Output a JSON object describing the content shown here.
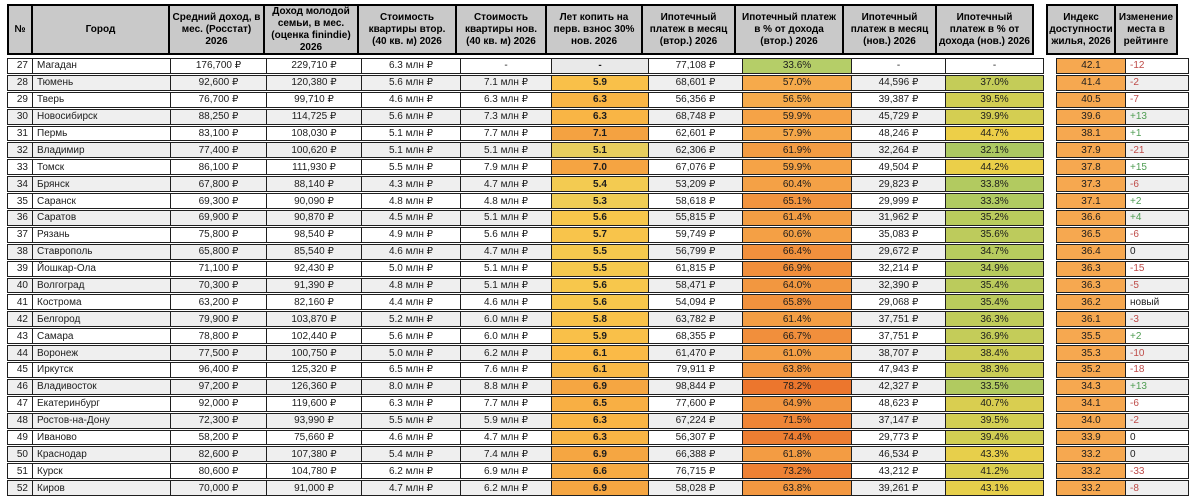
{
  "table": {
    "headers": {
      "num": "№",
      "city": "Город",
      "income": "Средний доход, в мес. (Росстат) 2026",
      "family_income": "Доход молодой семьи, в мес. (оценка finindie) 2026",
      "price_old": "Стоимость квартиры втор. (40 кв. м) 2026",
      "price_new": "Стоимость квартиры нов. (40 кв. м) 2026",
      "years_save": "Лет копить на перв. взнос 30% нов. 2026",
      "pay_old": "Ипотечный платеж в месяц (втор.) 2026",
      "pct_old": "Ипотечный платеж в % от дохода (втор.) 2026",
      "pay_new": "Ипотечный платеж в месяц (нов.) 2026",
      "pct_new": "Ипотечный платеж в % от дохода (нов.) 2026",
      "index": "Индекс доступности жилья, 2026",
      "change": "Изменение места в рейтинге"
    },
    "rows": [
      {
        "n": "27",
        "city": "Магадан",
        "income": "176,700 ₽",
        "family": "229,710 ₽",
        "price_old": "6.3 млн ₽",
        "price_new": "-",
        "years": "-",
        "years_bg": "#E9E9E9",
        "pay_old": "77,108 ₽",
        "pct_old": "33.6%",
        "pct_old_bg": "#B5CE68",
        "pay_new": "-",
        "pct_new": "-",
        "pct_new_bg": "",
        "index": "42.1",
        "change": "-12"
      },
      {
        "n": "28",
        "city": "Тюмень",
        "income": "92,600 ₽",
        "family": "120,380 ₽",
        "price_old": "5.6 млн ₽",
        "price_new": "7.1 млн ₽",
        "years": "5.9",
        "years_bg": "#F9C049",
        "pay_old": "68,601 ₽",
        "pct_old": "57.0%",
        "pct_old_bg": "#F6AA4B",
        "pay_new": "44,596 ₽",
        "pct_new": "37.0%",
        "pct_new_bg": "#C4CC58",
        "index": "41.4",
        "change": "-2"
      },
      {
        "n": "29",
        "city": "Тверь",
        "income": "76,700 ₽",
        "family": "99,710 ₽",
        "price_old": "4.6 млн ₽",
        "price_new": "6.3 млн ₽",
        "years": "6.3",
        "years_bg": "#F9B545",
        "pay_old": "56,356 ₽",
        "pct_old": "56.5%",
        "pct_old_bg": "#F6AB4C",
        "pay_new": "39,387 ₽",
        "pct_new": "39.5%",
        "pct_new_bg": "#D2CE53",
        "index": "40.5",
        "change": "-7"
      },
      {
        "n": "30",
        "city": "Новосибирск",
        "income": "88,250 ₽",
        "family": "114,725 ₽",
        "price_old": "5.6 млн ₽",
        "price_new": "7.3 млн ₽",
        "years": "6.3",
        "years_bg": "#F9B545",
        "pay_old": "68,748 ₽",
        "pct_old": "59.9%",
        "pct_old_bg": "#F5A347",
        "pay_new": "45,729 ₽",
        "pct_new": "39.9%",
        "pct_new_bg": "#D4CE52",
        "index": "39.6",
        "change": "+13"
      },
      {
        "n": "31",
        "city": "Пермь",
        "income": "83,100 ₽",
        "family": "108,030 ₽",
        "price_old": "5.1 млн ₽",
        "price_new": "7.7 млн ₽",
        "years": "7.1",
        "years_bg": "#F4A241",
        "pay_old": "62,601 ₽",
        "pct_old": "57.9%",
        "pct_old_bg": "#F5A749",
        "pay_new": "48,246 ₽",
        "pct_new": "44.7%",
        "pct_new_bg": "#EDCF48",
        "index": "38.1",
        "change": "+1"
      },
      {
        "n": "32",
        "city": "Владимир",
        "income": "77,400 ₽",
        "family": "100,620 ₽",
        "price_old": "5.1 млн ₽",
        "price_new": "5.1 млн ₽",
        "years": "5.1",
        "years_bg": "#E7CE5E",
        "pay_old": "62,306 ₽",
        "pct_old": "61.9%",
        "pct_old_bg": "#F39C43",
        "pay_new": "32,264 ₽",
        "pct_new": "32.1%",
        "pct_new_bg": "#ACC962",
        "index": "37.9",
        "change": "-21"
      },
      {
        "n": "33",
        "city": "Томск",
        "income": "86,100 ₽",
        "family": "111,930 ₽",
        "price_old": "5.5 млн ₽",
        "price_new": "7.9 млн ₽",
        "years": "7.0",
        "years_bg": "#F5A442",
        "pay_old": "67,076 ₽",
        "pct_old": "59.9%",
        "pct_old_bg": "#F5A347",
        "pay_new": "49,504 ₽",
        "pct_new": "44.2%",
        "pct_new_bg": "#EBCF49",
        "index": "37.8",
        "change": "+15"
      },
      {
        "n": "34",
        "city": "Брянск",
        "income": "67,800 ₽",
        "family": "88,140 ₽",
        "price_old": "4.3 млн ₽",
        "price_new": "4.7 млн ₽",
        "years": "5.4",
        "years_bg": "#F3CB51",
        "pay_old": "53,209 ₽",
        "pct_old": "60.4%",
        "pct_old_bg": "#F4A146",
        "pay_new": "29,823 ₽",
        "pct_new": "33.8%",
        "pct_new_bg": "#B2CA60",
        "index": "37.3",
        "change": "-6"
      },
      {
        "n": "35",
        "city": "Саранск",
        "income": "69,300 ₽",
        "family": "90,090 ₽",
        "price_old": "4.8 млн ₽",
        "price_new": "4.8 млн ₽",
        "years": "5.3",
        "years_bg": "#F0CD55",
        "pay_old": "58,618 ₽",
        "pct_old": "65.1%",
        "pct_old_bg": "#F2943F",
        "pay_new": "29,999 ₽",
        "pct_new": "33.3%",
        "pct_new_bg": "#B0CA61",
        "index": "37.1",
        "change": "+2"
      },
      {
        "n": "36",
        "city": "Саратов",
        "income": "69,900 ₽",
        "family": "90,870 ₽",
        "price_old": "4.5 млн ₽",
        "price_new": "5.1 млн ₽",
        "years": "5.6",
        "years_bg": "#F7C74C",
        "pay_old": "55,815 ₽",
        "pct_old": "61.4%",
        "pct_old_bg": "#F39E44",
        "pay_new": "31,962 ₽",
        "pct_new": "35.2%",
        "pct_new_bg": "#BACB5D",
        "index": "36.6",
        "change": "+4"
      },
      {
        "n": "37",
        "city": "Рязань",
        "income": "75,800 ₽",
        "family": "98,540 ₽",
        "price_old": "4.9 млн ₽",
        "price_new": "5.6 млн ₽",
        "years": "5.7",
        "years_bg": "#F8C44B",
        "pay_old": "59,749 ₽",
        "pct_old": "60.6%",
        "pct_old_bg": "#F4A045",
        "pay_new": "35,083 ₽",
        "pct_new": "35.6%",
        "pct_new_bg": "#BDCB5C",
        "index": "36.5",
        "change": "-6"
      },
      {
        "n": "38",
        "city": "Ставрополь",
        "income": "65,800 ₽",
        "family": "85,540 ₽",
        "price_old": "4.6 млн ₽",
        "price_new": "4.7 млн ₽",
        "years": "5.5",
        "years_bg": "#F5C94E",
        "pay_old": "56,799 ₽",
        "pct_old": "66.4%",
        "pct_old_bg": "#F1903D",
        "pay_new": "29,672 ₽",
        "pct_new": "34.7%",
        "pct_new_bg": "#B7CB5E",
        "index": "36.4",
        "change": "0"
      },
      {
        "n": "39",
        "city": "Йошкар-Ола",
        "income": "71,100 ₽",
        "family": "92,430 ₽",
        "price_old": "5.0 млн ₽",
        "price_new": "5.1 млн ₽",
        "years": "5.5",
        "years_bg": "#F5C94E",
        "pay_old": "61,815 ₽",
        "pct_old": "66.9%",
        "pct_old_bg": "#F18F3C",
        "pay_new": "32,214 ₽",
        "pct_new": "34.9%",
        "pct_new_bg": "#B8CB5E",
        "index": "36.3",
        "change": "-15"
      },
      {
        "n": "40",
        "city": "Волгоград",
        "income": "70,300 ₽",
        "family": "91,390 ₽",
        "price_old": "4.8 млн ₽",
        "price_new": "5.1 млн ₽",
        "years": "5.6",
        "years_bg": "#F7C74C",
        "pay_old": "58,471 ₽",
        "pct_old": "64.0%",
        "pct_old_bg": "#F29740",
        "pay_new": "32,390 ₽",
        "pct_new": "35.4%",
        "pct_new_bg": "#BBCB5C",
        "index": "36.3",
        "change": "-5"
      },
      {
        "n": "41",
        "city": "Кострома",
        "income": "63,200 ₽",
        "family": "82,160 ₽",
        "price_old": "4.4 млн ₽",
        "price_new": "4.6 млн ₽",
        "years": "5.6",
        "years_bg": "#F7C74C",
        "pay_old": "54,094 ₽",
        "pct_old": "65.8%",
        "pct_old_bg": "#F1923E",
        "pay_new": "29,068 ₽",
        "pct_new": "35.4%",
        "pct_new_bg": "#BBCB5C",
        "index": "36.2",
        "change": "новый"
      },
      {
        "n": "42",
        "city": "Белгород",
        "income": "79,900 ₽",
        "family": "103,870 ₽",
        "price_old": "5.2 млн ₽",
        "price_new": "6.0 млн ₽",
        "years": "5.8",
        "years_bg": "#F9C24A",
        "pay_old": "63,782 ₽",
        "pct_old": "61.4%",
        "pct_old_bg": "#F39E44",
        "pay_new": "37,751 ₽",
        "pct_new": "36.3%",
        "pct_new_bg": "#C0CC5A",
        "index": "36.1",
        "change": "-3"
      },
      {
        "n": "43",
        "city": "Самара",
        "income": "78,800 ₽",
        "family": "102,440 ₽",
        "price_old": "5.6 млн ₽",
        "price_new": "6.0 млн ₽",
        "years": "5.9",
        "years_bg": "#F9C049",
        "pay_old": "68,355 ₽",
        "pct_old": "66.7%",
        "pct_old_bg": "#F18F3C",
        "pay_new": "37,751 ₽",
        "pct_new": "36.9%",
        "pct_new_bg": "#C4CC59",
        "index": "35.5",
        "change": "+2"
      },
      {
        "n": "44",
        "city": "Воронеж",
        "income": "77,500 ₽",
        "family": "100,750 ₽",
        "price_old": "5.0 млн ₽",
        "price_new": "6.2 млн ₽",
        "years": "6.1",
        "years_bg": "#FABA47",
        "pay_old": "61,470 ₽",
        "pct_old": "61.0%",
        "pct_old_bg": "#F49F45",
        "pay_new": "38,707 ₽",
        "pct_new": "38.4%",
        "pct_new_bg": "#CCCD55",
        "index": "35.3",
        "change": "-10"
      },
      {
        "n": "45",
        "city": "Иркутск",
        "income": "96,400 ₽",
        "family": "125,320 ₽",
        "price_old": "6.5 млн ₽",
        "price_new": "7.6 млн ₽",
        "years": "6.1",
        "years_bg": "#FABA47",
        "pay_old": "79,911 ₽",
        "pct_old": "63.8%",
        "pct_old_bg": "#F39841",
        "pay_new": "47,943 ₽",
        "pct_new": "38.3%",
        "pct_new_bg": "#CBCD56",
        "index": "35.2",
        "change": "-18"
      },
      {
        "n": "46",
        "city": "Владивосток",
        "income": "97,200 ₽",
        "family": "126,360 ₽",
        "price_old": "8.0 млн ₽",
        "price_new": "8.8 млн ₽",
        "years": "6.9",
        "years_bg": "#F5A642",
        "pay_old": "98,844 ₽",
        "pct_old": "78.2%",
        "pct_old_bg": "#EC762D",
        "pay_new": "42,327 ₽",
        "pct_new": "33.5%",
        "pct_new_bg": "#B1CA60",
        "index": "34.3",
        "change": "+13"
      },
      {
        "n": "47",
        "city": "Екатеринбург",
        "income": "92,000 ₽",
        "family": "119,600 ₽",
        "price_old": "6.3 млн ₽",
        "price_new": "7.7 млн ₽",
        "years": "6.5",
        "years_bg": "#F8AF44",
        "pay_old": "77,600 ₽",
        "pct_old": "64.9%",
        "pct_old_bg": "#F2953F",
        "pay_new": "48,623 ₽",
        "pct_new": "40.7%",
        "pct_new_bg": "#D9CE50",
        "index": "34.1",
        "change": "-6"
      },
      {
        "n": "48",
        "city": "Ростов-на-Дону",
        "income": "72,300 ₽",
        "family": "93,990 ₽",
        "price_old": "5.5 млн ₽",
        "price_new": "5.9 млн ₽",
        "years": "6.3",
        "years_bg": "#F9B545",
        "pay_old": "67,224 ₽",
        "pct_old": "71.5%",
        "pct_old_bg": "#EF8536",
        "pay_new": "37,147 ₽",
        "pct_new": "39.5%",
        "pct_new_bg": "#D2CE53",
        "index": "34.0",
        "change": "-2"
      },
      {
        "n": "49",
        "city": "Иваново",
        "income": "58,200 ₽",
        "family": "75,660 ₽",
        "price_old": "4.6 млн ₽",
        "price_new": "4.7 млн ₽",
        "years": "6.3",
        "years_bg": "#F9B545",
        "pay_old": "56,307 ₽",
        "pct_old": "74.4%",
        "pct_old_bg": "#ED7E32",
        "pay_new": "29,773 ₽",
        "pct_new": "39.4%",
        "pct_new_bg": "#D1CE53",
        "index": "33.9",
        "change": "0"
      },
      {
        "n": "50",
        "city": "Краснодар",
        "income": "82,600 ₽",
        "family": "107,380 ₽",
        "price_old": "5.4 млн ₽",
        "price_new": "7.4 млн ₽",
        "years": "6.9",
        "years_bg": "#F5A642",
        "pay_old": "66,388 ₽",
        "pct_old": "61.8%",
        "pct_old_bg": "#F39C43",
        "pay_new": "46,534 ₽",
        "pct_new": "43.3%",
        "pct_new_bg": "#E7CF4B",
        "index": "33.2",
        "change": "0"
      },
      {
        "n": "51",
        "city": "Курск",
        "income": "80,600 ₽",
        "family": "104,780 ₽",
        "price_old": "6.2 млн ₽",
        "price_new": "6.9 млн ₽",
        "years": "6.6",
        "years_bg": "#F7AB43",
        "pay_old": "76,715 ₽",
        "pct_old": "73.2%",
        "pct_old_bg": "#EE8134",
        "pay_new": "43,212 ₽",
        "pct_new": "41.2%",
        "pct_new_bg": "#DCCF4F",
        "index": "33.2",
        "change": "-33"
      },
      {
        "n": "52",
        "city": "Киров",
        "income": "70,000 ₽",
        "family": "91,000 ₽",
        "price_old": "4.7 млн ₽",
        "price_new": "6.2 млн ₽",
        "years": "6.9",
        "years_bg": "#F5A642",
        "pay_old": "58,028 ₽",
        "pct_old": "63.8%",
        "pct_old_bg": "#F39841",
        "pay_new": "39,261 ₽",
        "pct_new": "43.1%",
        "pct_new_bg": "#E6CF4B",
        "index": "33.2",
        "change": "-8"
      }
    ]
  },
  "colors": {
    "header_bg": "#C9C9C9",
    "stripe_odd": "#FFFFFF",
    "stripe_even": "#EFEFEF",
    "index_bg": "#F6A850",
    "change_positive": "#4F9D53",
    "change_negative": "#BE4B48",
    "change_neutral": "#1c1c1c"
  }
}
